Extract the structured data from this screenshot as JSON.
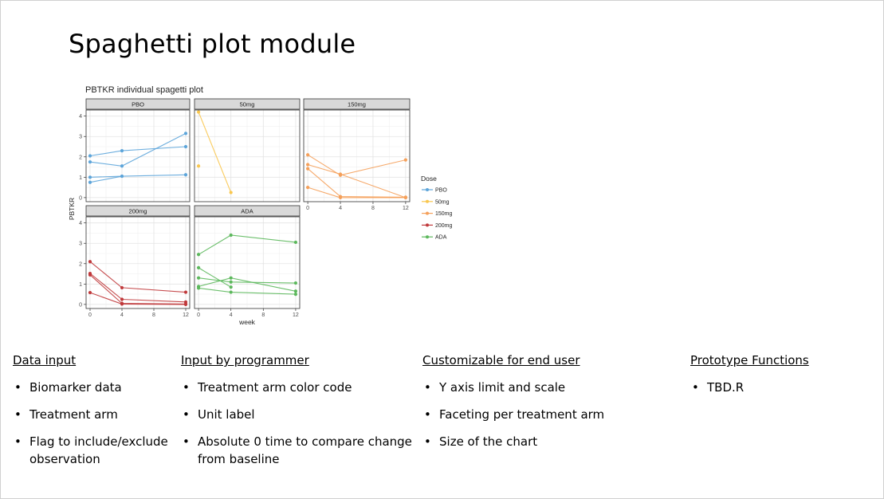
{
  "slide": {
    "title": "Spaghetti plot module"
  },
  "columns": [
    {
      "heading": "Data input",
      "items": [
        "Biomarker data",
        "Treatment arm",
        "Flag to include/exclude observation"
      ]
    },
    {
      "heading": "Input by programmer",
      "items": [
        "Treatment arm color code",
        "Unit label",
        "Absolute 0 time to compare change from baseline"
      ]
    },
    {
      "heading": "Customizable for end user",
      "items": [
        "Y axis limit and scale",
        "Faceting per treatment arm",
        "Size of the chart"
      ]
    },
    {
      "heading": "Prototype Functions",
      "items": [
        "TBD.R"
      ]
    }
  ],
  "chart_data": {
    "type": "line",
    "title": "PBTKR individual spagetti plot",
    "xlabel": "week",
    "ylabel": "PBTKR",
    "xticks": [
      0,
      4,
      8,
      12
    ],
    "yticks": [
      0,
      1,
      2,
      3,
      4
    ],
    "xlim": [
      -0.5,
      12.5
    ],
    "ylim": [
      -0.2,
      4.3
    ],
    "grid": true,
    "legend": {
      "title": "Dose",
      "position": "right"
    },
    "facets": [
      {
        "label": "PBO",
        "color": "#5DA5DA",
        "subjects": [
          [
            [
              0,
              2.05
            ],
            [
              4,
              2.3
            ],
            [
              12,
              2.5
            ]
          ],
          [
            [
              0,
              1.75
            ],
            [
              4,
              1.55
            ],
            [
              12,
              3.15
            ]
          ],
          [
            [
              0,
              1.0
            ],
            [
              4,
              1.05
            ],
            [
              12,
              1.12
            ]
          ],
          [
            [
              0,
              0.75
            ],
            [
              4,
              1.05
            ]
          ]
        ]
      },
      {
        "label": "50mg",
        "color": "#F9C74F",
        "subjects": [
          [
            [
              0,
              4.2
            ],
            [
              4,
              0.25
            ]
          ],
          [
            [
              0,
              1.55
            ]
          ]
        ]
      },
      {
        "label": "150mg",
        "color": "#F5A05A",
        "subjects": [
          [
            [
              0,
              2.1
            ],
            [
              4,
              1.1
            ],
            [
              12,
              1.85
            ]
          ],
          [
            [
              0,
              1.62
            ],
            [
              4,
              1.15
            ],
            [
              12,
              0.0
            ]
          ],
          [
            [
              0,
              1.42
            ],
            [
              4,
              0.05
            ],
            [
              12,
              0.02
            ]
          ],
          [
            [
              0,
              0.5
            ],
            [
              4,
              0.0
            ],
            [
              12,
              0.0
            ]
          ]
        ]
      },
      {
        "label": "200mg",
        "color": "#C0393B",
        "subjects": [
          [
            [
              0,
              2.1
            ],
            [
              4,
              0.82
            ],
            [
              12,
              0.6
            ]
          ],
          [
            [
              0,
              1.52
            ],
            [
              4,
              0.25
            ],
            [
              12,
              0.12
            ]
          ],
          [
            [
              0,
              1.45
            ],
            [
              4,
              0.05
            ],
            [
              12,
              0.02
            ]
          ],
          [
            [
              0,
              0.58
            ],
            [
              4,
              0.02
            ],
            [
              12,
              0.0
            ]
          ]
        ]
      },
      {
        "label": "ADA",
        "color": "#5CB85C",
        "subjects": [
          [
            [
              0,
              2.45
            ],
            [
              4,
              3.4
            ],
            [
              12,
              3.05
            ]
          ],
          [
            [
              0,
              1.8
            ],
            [
              4,
              0.85
            ]
          ],
          [
            [
              0,
              1.3
            ],
            [
              4,
              1.1
            ],
            [
              12,
              1.05
            ]
          ],
          [
            [
              0,
              0.88
            ],
            [
              4,
              1.3
            ],
            [
              12,
              0.65
            ]
          ],
          [
            [
              0,
              0.8
            ],
            [
              4,
              0.6
            ],
            [
              12,
              0.5
            ]
          ]
        ]
      }
    ]
  }
}
